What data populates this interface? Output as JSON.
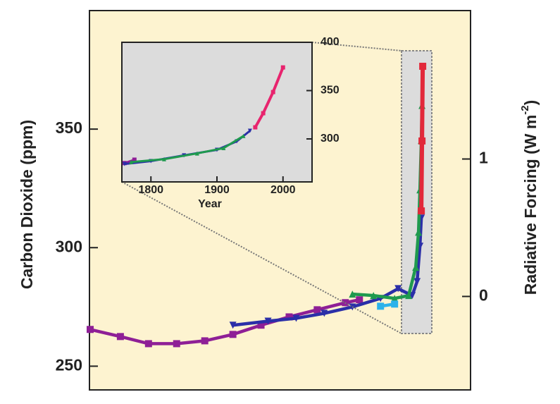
{
  "chart_data": [
    {
      "type": "line",
      "y_label": "Carbon Dioxide (ppm)",
      "y2_label": "Radiative Forcing (W m",
      "y2_label_sup": "-2",
      "y2_label_end": ")",
      "xlim": [
        -8000,
        3435
      ],
      "ylim": [
        240,
        400
      ],
      "yticks": [
        250,
        300,
        350
      ],
      "y2lim": [
        -0.68,
        2.08
      ],
      "y2ticks": [
        0,
        1
      ],
      "series": [
        {
          "name": "purple",
          "color": "#8e1f96",
          "x": [
            -7979,
            -7072,
            -6228,
            -5384,
            -4540,
            -3696,
            -2852,
            -2008,
            -1165,
            -321,
            101
          ],
          "values": [
            265.5,
            262.5,
            259.5,
            259.5,
            260.7,
            263.4,
            267.3,
            270.8,
            273.8,
            276.8,
            278
          ]
        },
        {
          "name": "blue",
          "color": "#2b2fa8",
          "x": [
            -3696,
            -2641,
            -1797,
            -954,
            -110,
            734,
            1262,
            1684,
            1831,
            1916,
            1958
          ],
          "values": [
            267.3,
            269,
            270.2,
            272.3,
            275,
            278.6,
            282.7,
            279.8,
            285.7,
            300.6,
            312.5
          ]
        },
        {
          "name": "green",
          "color": "#1f9a4e",
          "x": [
            -110,
            523,
            1156,
            1578,
            1789,
            1873,
            1916,
            1958,
            1979
          ],
          "values": [
            280.4,
            279.8,
            278.6,
            279.8,
            291.7,
            306.5,
            324.4,
            345.2,
            360
          ]
        },
        {
          "name": "cyan",
          "color": "#2cb2ea",
          "x": [
            734,
            1156
          ],
          "values": [
            275.3,
            276.2
          ]
        },
        {
          "name": "red",
          "color": "#e2283a",
          "x": [
            1958,
            1979,
            2000
          ],
          "values": [
            315.5,
            345,
            376.5
          ]
        }
      ]
    },
    {
      "type": "line",
      "x_label": "Year",
      "xlim": [
        1756,
        2044
      ],
      "ylim": [
        255.5,
        400
      ],
      "xticks": [
        1800,
        1900,
        2000
      ],
      "yticks": [
        300,
        350,
        400
      ],
      "series": [
        {
          "name": "purple",
          "color": "#8e1f96",
          "x": [
            1760,
            1775
          ],
          "values": [
            275,
            278.5
          ]
        },
        {
          "name": "blue",
          "color": "#2b2fa8",
          "x": [
            1760,
            1800,
            1850,
            1900,
            1930,
            1950
          ],
          "values": [
            274,
            277,
            283,
            288.7,
            297.5,
            308.4
          ]
        },
        {
          "name": "green",
          "color": "#1f9a4e",
          "x": [
            1770,
            1820,
            1870,
            1910,
            1940
          ],
          "values": [
            276,
            279,
            285,
            290.5,
            303
          ]
        },
        {
          "name": "red",
          "color": "#e8246e",
          "x": [
            1958,
            1970,
            1985,
            2000
          ],
          "values": [
            312,
            326.6,
            348.5,
            374
          ]
        }
      ]
    }
  ]
}
